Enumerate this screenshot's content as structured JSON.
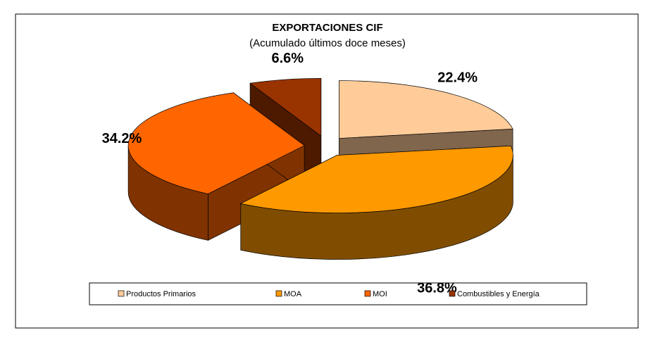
{
  "chart_data": {
    "type": "pie",
    "title": "EXPORTACIONES CIF",
    "subtitle": "(Acumulado últimos doce meses)",
    "categories": [
      "Productos Primarios",
      "MOA",
      "MOI",
      "Combustibles y Energía"
    ],
    "values": [
      22.4,
      36.8,
      34.2,
      6.6
    ],
    "value_labels": [
      "22.4%",
      "36.8%",
      "34.2%",
      "6.6%"
    ],
    "colors": [
      "#FFCC99",
      "#FF9900",
      "#FF6600",
      "#993300"
    ],
    "legend": "bottom",
    "exploded": true,
    "three_d": true
  }
}
